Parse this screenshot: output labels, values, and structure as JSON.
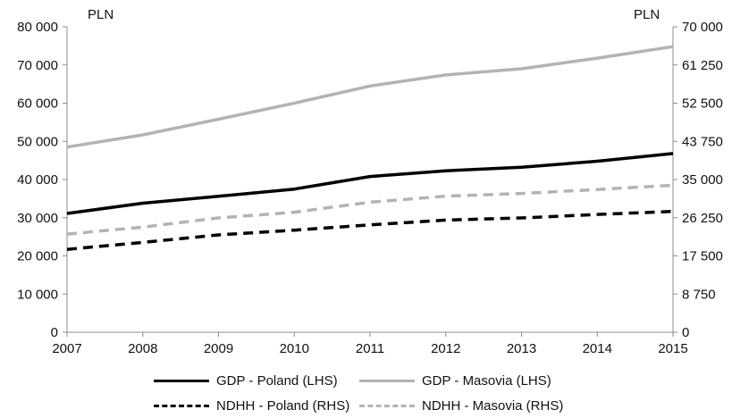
{
  "chart_data": {
    "type": "line",
    "x": [
      2007,
      2008,
      2009,
      2010,
      2011,
      2012,
      2013,
      2014,
      2015
    ],
    "x_tick_labels": [
      "2007",
      "2008",
      "2009",
      "2010",
      "2011",
      "2012",
      "2013",
      "2014",
      "2015"
    ],
    "left_axis": {
      "unit_label": "PLN",
      "ylim": [
        0,
        80000
      ],
      "tick_labels": [
        "0",
        "10 000",
        "20 000",
        "30 000",
        "40 000",
        "50 000",
        "60 000",
        "70 000",
        "80 000"
      ],
      "tick_values": [
        0,
        10000,
        20000,
        30000,
        40000,
        50000,
        60000,
        70000,
        80000
      ]
    },
    "right_axis": {
      "unit_label": "PLN",
      "ylim": [
        0,
        70000
      ],
      "tick_labels": [
        "0",
        "8 750",
        "17 500",
        "26 250",
        "35 000",
        "43 750",
        "52 500",
        "61 250",
        "70 000"
      ],
      "tick_values": [
        0,
        8750,
        17500,
        26250,
        35000,
        43750,
        52500,
        61250,
        70000
      ]
    },
    "grid": false,
    "legend_position": "bottom",
    "series": [
      {
        "name": "GDP - Poland (LHS)",
        "axis": "left",
        "style": "solid",
        "color": "#000000",
        "values": [
          31100,
          33800,
          35600,
          37500,
          40800,
          42300,
          43200,
          44800,
          46800
        ]
      },
      {
        "name": "GDP - Masovia (LHS)",
        "axis": "left",
        "style": "solid",
        "color": "#b3b3b3",
        "values": [
          48500,
          51700,
          55800,
          60000,
          64500,
          67400,
          69000,
          71800,
          74800
        ]
      },
      {
        "name": "NDHH - Poland (RHS)",
        "axis": "right",
        "style": "dashed",
        "color": "#000000",
        "values": [
          19000,
          20600,
          22300,
          23400,
          24600,
          25700,
          26200,
          27000,
          27700
        ]
      },
      {
        "name": "NDHH - Masovia (RHS)",
        "axis": "right",
        "style": "dashed",
        "color": "#b3b3b3",
        "values": [
          22500,
          24100,
          26200,
          27500,
          29800,
          31200,
          31800,
          32700,
          33700
        ]
      }
    ]
  }
}
